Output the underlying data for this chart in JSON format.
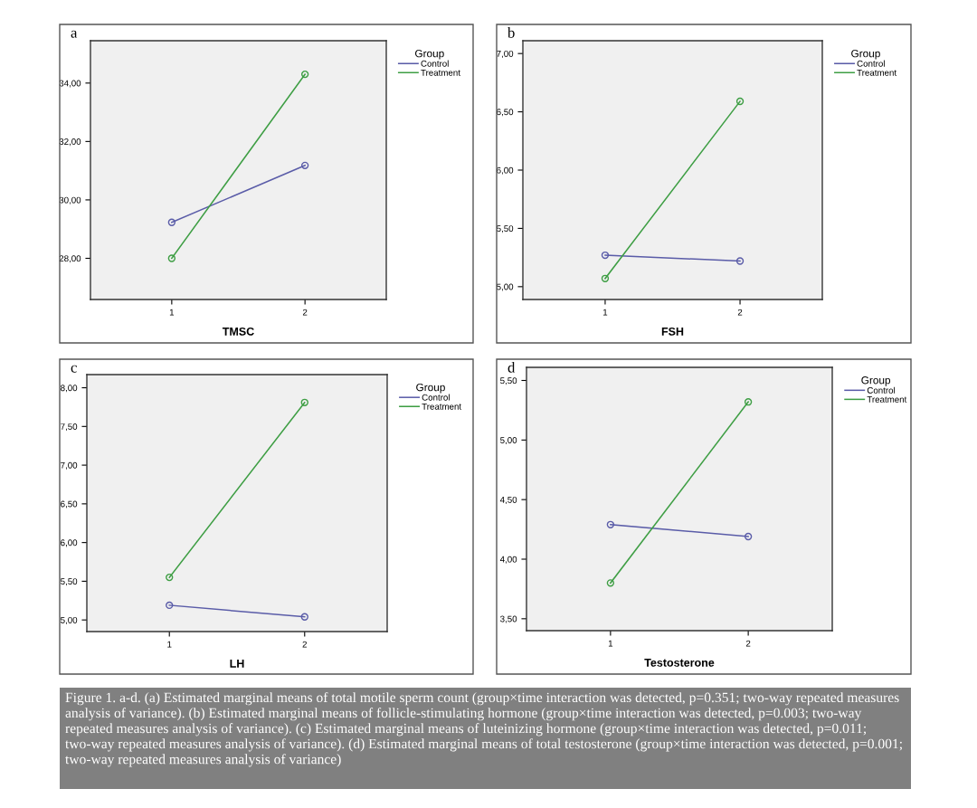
{
  "chart_data": [
    {
      "type": "line",
      "title": "a",
      "xlabel": "TMSC",
      "legend_title": "Group",
      "legend": "right",
      "grid": false,
      "marker": "circle",
      "line_style": "solid",
      "categories": [
        "1",
        "2"
      ],
      "ylim": [
        26.59,
        35.45
      ],
      "yticks": [
        {
          "value": 28,
          "label": "28,00"
        },
        {
          "value": 30,
          "label": "30,00"
        },
        {
          "value": 32,
          "label": "32,00"
        },
        {
          "value": 34,
          "label": "34,00"
        }
      ],
      "series": [
        {
          "name": "Control",
          "color": "#5a5ca8",
          "values": [
            29.23,
            31.18
          ]
        },
        {
          "name": "Treatment",
          "color": "#3e9e44",
          "values": [
            28.0,
            34.3
          ]
        }
      ]
    },
    {
      "type": "line",
      "title": "b",
      "xlabel": "FSH",
      "legend_title": "Group",
      "legend": "right",
      "grid": false,
      "marker": "circle",
      "line_style": "solid",
      "categories": [
        "1",
        "2"
      ],
      "ylim": [
        4.89,
        7.11
      ],
      "yticks": [
        {
          "value": 5,
          "label": "5,00"
        },
        {
          "value": 5.5,
          "label": "5,50"
        },
        {
          "value": 6,
          "label": "6,00"
        },
        {
          "value": 6.5,
          "label": "6,50"
        },
        {
          "value": 7,
          "label": "7,00"
        }
      ],
      "series": [
        {
          "name": "Control",
          "color": "#5a5ca8",
          "values": [
            5.27,
            5.22
          ]
        },
        {
          "name": "Treatment",
          "color": "#3e9e44",
          "values": [
            5.07,
            6.59
          ]
        }
      ]
    },
    {
      "type": "line",
      "title": "c",
      "xlabel": "LH",
      "legend_title": "Group",
      "legend": "right",
      "grid": false,
      "marker": "circle",
      "line_style": "solid",
      "categories": [
        "1",
        "2"
      ],
      "ylim": [
        4.85,
        8.17
      ],
      "yticks": [
        {
          "value": 5,
          "label": "5,00"
        },
        {
          "value": 5.5,
          "label": "5,50"
        },
        {
          "value": 6,
          "label": "6,00"
        },
        {
          "value": 6.5,
          "label": "6,50"
        },
        {
          "value": 7,
          "label": "7,00"
        },
        {
          "value": 7.5,
          "label": "7,50"
        },
        {
          "value": 8,
          "label": "8,00"
        }
      ],
      "series": [
        {
          "name": "Control",
          "color": "#5a5ca8",
          "values": [
            5.19,
            5.04
          ]
        },
        {
          "name": "Treatment",
          "color": "#3e9e44",
          "values": [
            5.55,
            7.81
          ]
        }
      ]
    },
    {
      "type": "line",
      "title": "d",
      "xlabel": "Testosterone",
      "legend_title": "Group",
      "legend": "right",
      "grid": false,
      "marker": "circle",
      "line_style": "solid",
      "categories": [
        "1",
        "2"
      ],
      "ylim": [
        3.4,
        5.61
      ],
      "yticks": [
        {
          "value": 3.5,
          "label": "3,50"
        },
        {
          "value": 4,
          "label": "4,00"
        },
        {
          "value": 4.5,
          "label": "4,50"
        },
        {
          "value": 5,
          "label": "5,00"
        },
        {
          "value": 5.5,
          "label": "5,50"
        }
      ],
      "series": [
        {
          "name": "Control",
          "color": "#5a5ca8",
          "values": [
            4.29,
            4.19
          ]
        },
        {
          "name": "Treatment",
          "color": "#3e9e44",
          "values": [
            3.8,
            5.32
          ]
        }
      ],
      "annotations": [
        "Figure 1. a-d. (a) Estimated marginal means of total motile sperm count (group×time interaction was detected, p=0.351; two-way repeated measures analysis of variance). (b) Estimated marginal means of follicle-stimulating hormone (group×time interaction was detected, p=0.003; two-way repeated measures analysis of variance). (c) Estimated marginal means of luteinizing hormone (group×time interaction was detected, p=0.011; two-way repeated measures analysis of variance). (d) Estimated marginal means of total testosterone (group×time interaction was detected, p=0.001; two-way repeated measures analysis of variance)"
      ]
    }
  ]
}
